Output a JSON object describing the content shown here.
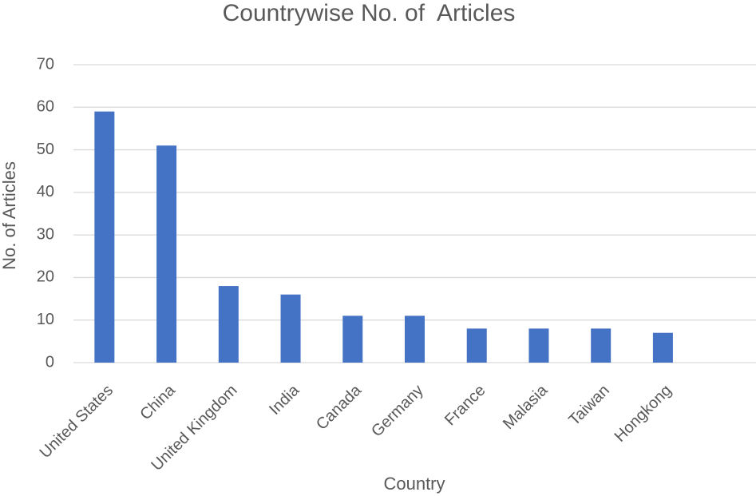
{
  "chart_data": {
    "type": "bar",
    "title": "Countrywise No. of  Articles",
    "x_label": "Country",
    "y_label": "No. of Articles",
    "categories": [
      "United States",
      "China",
      "United Kingdom",
      "India",
      "Canada",
      "Germany",
      "France",
      "Malasia",
      "Taiwan",
      "Hongkong",
      null
    ],
    "values": [
      59,
      51,
      18,
      16,
      11,
      11,
      8,
      8,
      8,
      7,
      null
    ],
    "color": "#4472c4",
    "ylim": [
      0,
      70
    ],
    "yticks": [
      0,
      10,
      20,
      30,
      40,
      50,
      60,
      70
    ],
    "grid": true
  }
}
